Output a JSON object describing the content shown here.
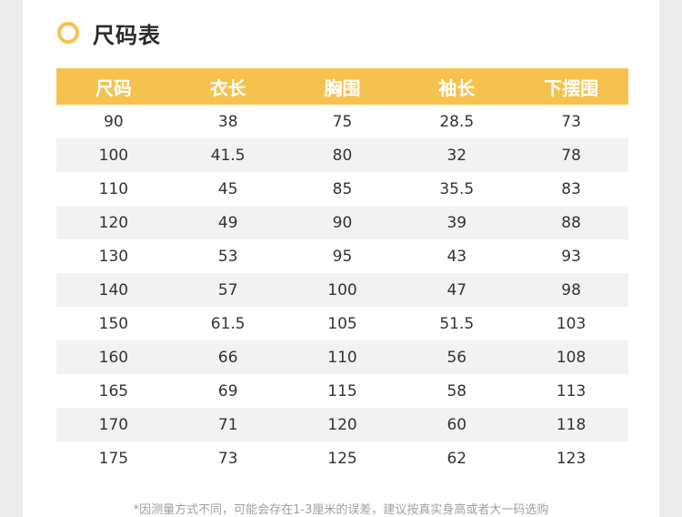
{
  "title": "尺码表",
  "accent_color": "#f6c24f",
  "table": {
    "headers": [
      "尺码",
      "衣长",
      "胸围",
      "袖长",
      "下摆围"
    ],
    "rows": [
      [
        "90",
        "38",
        "75",
        "28.5",
        "73"
      ],
      [
        "100",
        "41.5",
        "80",
        "32",
        "78"
      ],
      [
        "110",
        "45",
        "85",
        "35.5",
        "83"
      ],
      [
        "120",
        "49",
        "90",
        "39",
        "88"
      ],
      [
        "130",
        "53",
        "95",
        "43",
        "93"
      ],
      [
        "140",
        "57",
        "100",
        "47",
        "98"
      ],
      [
        "150",
        "61.5",
        "105",
        "51.5",
        "103"
      ],
      [
        "160",
        "66",
        "110",
        "56",
        "108"
      ],
      [
        "165",
        "69",
        "115",
        "58",
        "113"
      ],
      [
        "170",
        "71",
        "120",
        "60",
        "118"
      ],
      [
        "175",
        "73",
        "125",
        "62",
        "123"
      ]
    ]
  },
  "note": "*因测量方式不同，可能会存在1-3厘米的误差，建议按真实身高或者大一码选购"
}
